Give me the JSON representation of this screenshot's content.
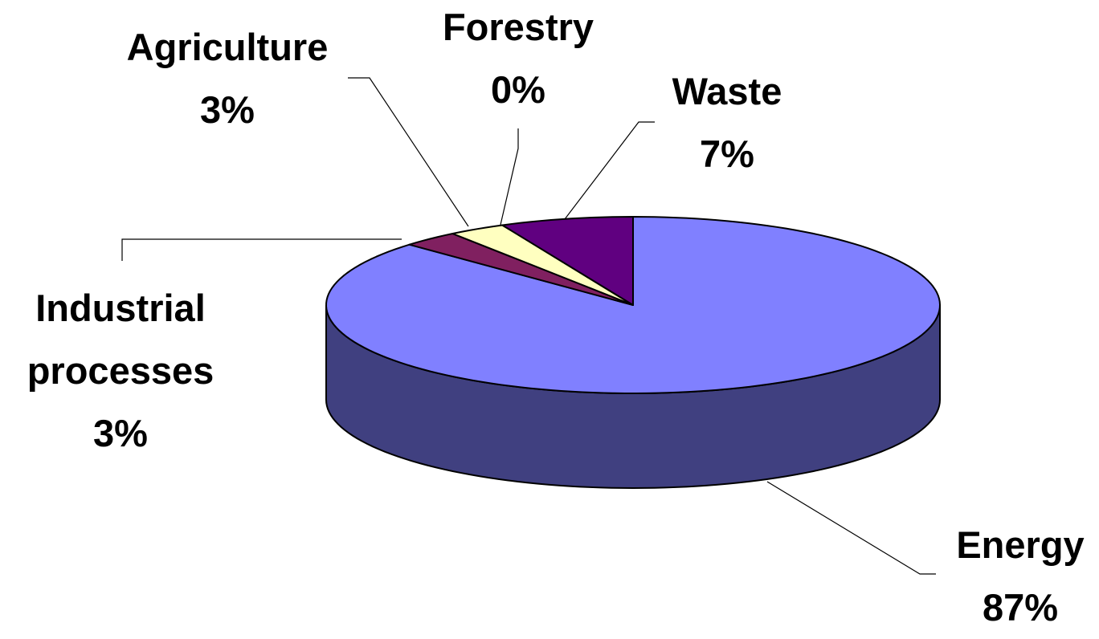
{
  "chart_data": {
    "type": "pie",
    "categories": [
      "Energy",
      "Industrial processes",
      "Agriculture",
      "Forestry",
      "Waste"
    ],
    "values": [
      87,
      3,
      3,
      0,
      7
    ],
    "value_labels": [
      "87%",
      "3%",
      "3%",
      "0%",
      "7%"
    ],
    "colors": [
      "#8080ff",
      "#802060",
      "#ffffc0",
      "#a0e0e0",
      "#600080"
    ]
  }
}
